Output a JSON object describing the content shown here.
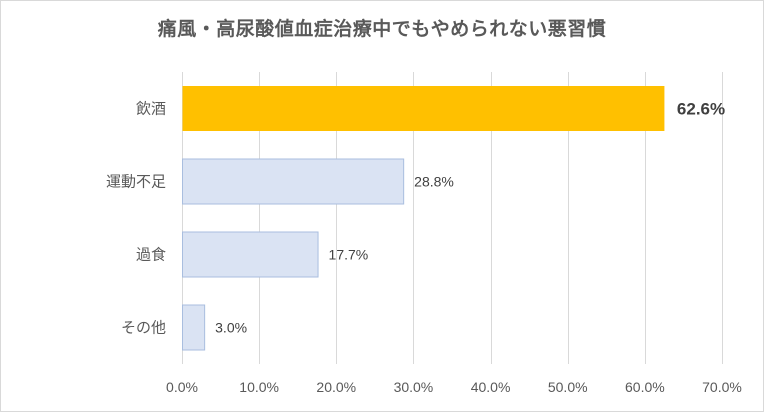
{
  "colors": {
    "highlight_bar": "#FFC000",
    "normal_bar": "#DAE3F3",
    "normal_bar_border": "#A9BEDF",
    "grid": "#d9d9d9",
    "text": "#595959"
  },
  "chart_data": {
    "type": "bar",
    "orientation": "horizontal",
    "title": "痛風・高尿酸値血症治療中でもやめられない悪習慣",
    "xlabel": "",
    "ylabel": "",
    "xlim": [
      0,
      70
    ],
    "x_ticks": [
      "0.0%",
      "10.0%",
      "20.0%",
      "30.0%",
      "40.0%",
      "50.0%",
      "60.0%",
      "70.0%"
    ],
    "x_tick_values": [
      0,
      10,
      20,
      30,
      40,
      50,
      60,
      70
    ],
    "grid": "vertical",
    "legend": "none",
    "categories": [
      "飲酒",
      "運動不足",
      "過食",
      "その他"
    ],
    "values": [
      62.6,
      28.8,
      17.7,
      3.0
    ],
    "data_labels": [
      "62.6%",
      "28.8%",
      "17.7%",
      "3.0%"
    ],
    "highlighted_category": "飲酒"
  }
}
